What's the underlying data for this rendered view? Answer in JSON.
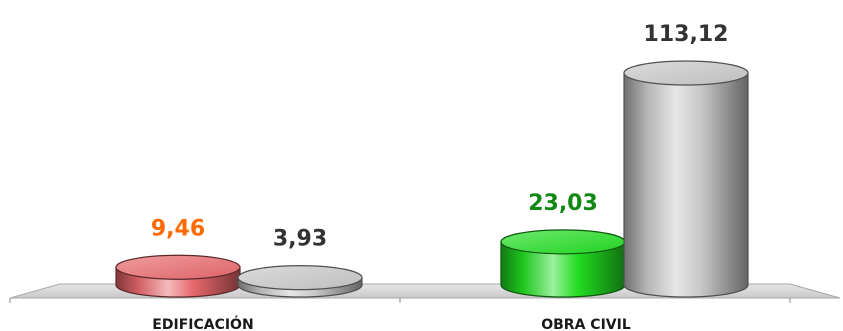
{
  "chart_data": {
    "type": "bar",
    "title": "",
    "xlabel": "",
    "ylabel": "",
    "categories": [
      "EDIFICACIÓN",
      "OBRA CIVIL"
    ],
    "series": [
      {
        "values": [
          9.46,
          23.03
        ],
        "labels": [
          "9,46",
          "23,03"
        ],
        "colors": [
          "#e8686c",
          "#22dd22"
        ],
        "label_colors": [
          "#ff6a00",
          "#118811"
        ]
      },
      {
        "values": [
          3.93,
          113.12
        ],
        "labels": [
          "3,93",
          "113,12"
        ],
        "colors": [
          "#c8c8c8",
          "#c8c8c8"
        ],
        "label_colors": [
          "#333333",
          "#333333"
        ]
      }
    ],
    "ylim": [
      0,
      113.12
    ],
    "grid": false,
    "legend": "none"
  }
}
